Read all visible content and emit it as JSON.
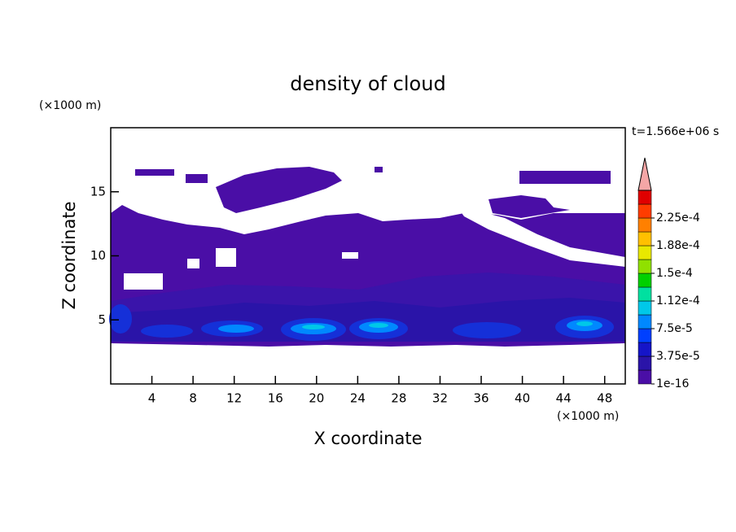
{
  "chart_data": {
    "type": "contour",
    "title": "density of cloud",
    "x_label": "X coordinate",
    "y_label": "Z coordinate",
    "x_unit": "(×1000 m)",
    "y_unit": "(×1000 m)",
    "time_label": "t=1.566e+06 s",
    "xlim": [
      0,
      50
    ],
    "ylim": [
      0,
      20
    ],
    "xticks": [
      4,
      8,
      12,
      16,
      20,
      24,
      28,
      32,
      36,
      40,
      44,
      48
    ],
    "yticks": [
      5,
      10,
      15
    ],
    "colorbar": {
      "ticks": [
        {
          "value": 1e-16,
          "label": "1e-16"
        },
        {
          "value": 3.75e-05,
          "label": "3.75e-5"
        },
        {
          "value": 7.5e-05,
          "label": "7.5e-5"
        },
        {
          "value": 0.000112,
          "label": "1.12e-4"
        },
        {
          "value": 0.00015,
          "label": "1.5e-4"
        },
        {
          "value": 0.000188,
          "label": "1.88e-4"
        },
        {
          "value": 0.000225,
          "label": "2.25e-4"
        }
      ],
      "colors": [
        "#4a0ea6",
        "#2a14a8",
        "#1515c8",
        "#0040ff",
        "#0088ff",
        "#00c8e8",
        "#00e0a0",
        "#00d000",
        "#90e000",
        "#e8e800",
        "#ffc000",
        "#ff8000",
        "#ff3c00",
        "#e00000"
      ],
      "over_color": "#f4a6a6"
    }
  }
}
